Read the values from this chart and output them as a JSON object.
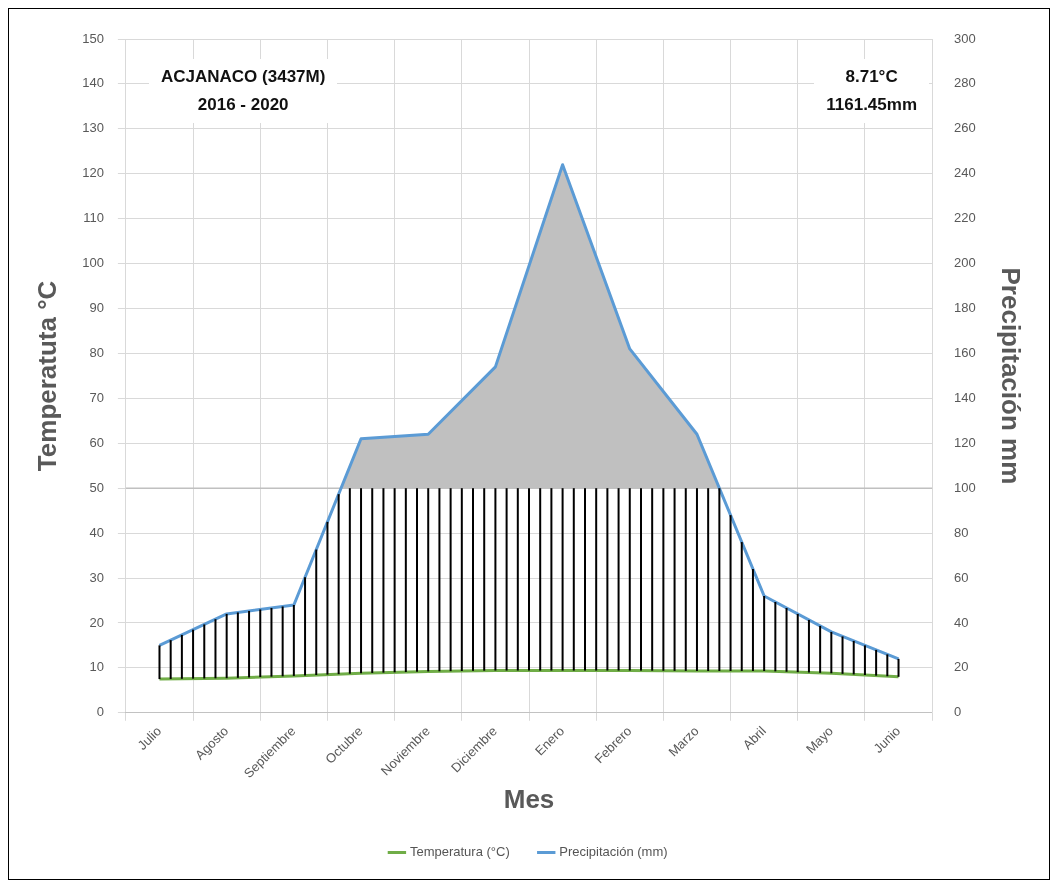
{
  "chart_data": {
    "type": "line",
    "xlabel": "Mes",
    "ylabel": "Temperatuta °C",
    "y2label": "Precipitación mm",
    "categories": [
      "Julio",
      "Agosto",
      "Septiembre",
      "Octubre",
      "Noviembre",
      "Diciembre",
      "Enero",
      "Febrero",
      "Marzo",
      "Abril",
      "Mayo",
      "Junio"
    ],
    "series": [
      {
        "name": "Temperatura (°C)",
        "color": "#70ad47",
        "values": [
          7.5,
          7.7,
          8.2,
          8.8,
          9.2,
          9.4,
          9.4,
          9.4,
          9.3,
          9.3,
          8.8,
          8.0
        ]
      },
      {
        "name": "Precipitación (mm)",
        "color": "#5b9bd5",
        "axis": "y2",
        "values": [
          30,
          44,
          48,
          122,
          124,
          154,
          244,
          162,
          124,
          52,
          36,
          24
        ]
      }
    ],
    "ylim": [
      0,
      150
    ],
    "yticks": [
      0,
      10,
      20,
      30,
      40,
      50,
      60,
      70,
      80,
      90,
      100,
      110,
      120,
      130,
      140,
      150
    ],
    "y2lim": [
      0,
      300
    ],
    "y2ticks": [
      0,
      20,
      40,
      60,
      80,
      100,
      120,
      140,
      160,
      180,
      200,
      220,
      240,
      260,
      280,
      300
    ],
    "ref_lines": [
      {
        "axis": "y2",
        "value": 100,
        "color": "#c0c0c0"
      }
    ],
    "annotations": [
      "ACJANACO (3437M)",
      "2016 - 2020",
      "8.71°C",
      "1161.45mm"
    ],
    "grid": true,
    "legend": "bottom",
    "marker": "none",
    "line_style": "solid"
  }
}
